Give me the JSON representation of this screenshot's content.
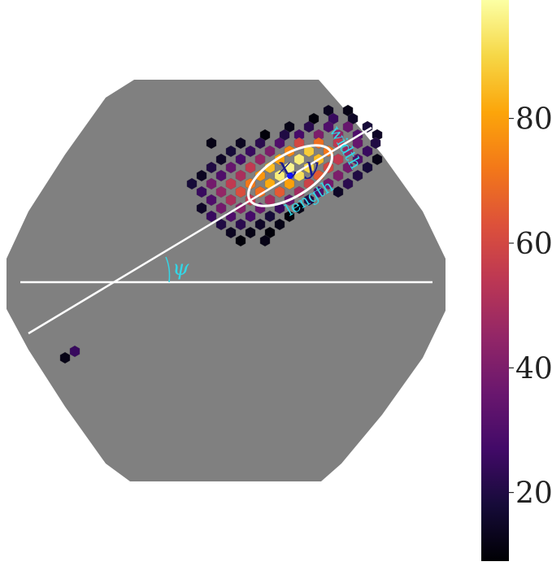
{
  "chart_data": {
    "type": "camera",
    "colormap": "inferno",
    "annotations": {
      "position": "x, y",
      "width": "width",
      "length": "length",
      "angle": "ψ"
    },
    "x": [
      428,
      404,
      386,
      410,
      434,
      356,
      380,
      404,
      428,
      452,
      326,
      350,
      368,
      392,
      416,
      440,
      464,
      260,
      296,
      320,
      344,
      368,
      392,
      416,
      440,
      462,
      284,
      308,
      332,
      356,
      380,
      404,
      428,
      452,
      272,
      296,
      320,
      344,
      368,
      392,
      416,
      440,
      464,
      260,
      284,
      308,
      332,
      356,
      380,
      404,
      428,
      452,
      248,
      272,
      296,
      320,
      344,
      368,
      392,
      416,
      440,
      236,
      260,
      284,
      308,
      332,
      356,
      380,
      404,
      428,
      248,
      272,
      296,
      320,
      344,
      368,
      392,
      416,
      260,
      284,
      308,
      332,
      356,
      380,
      248,
      272,
      296,
      320,
      344,
      368,
      260,
      284,
      308,
      332,
      356,
      272,
      296,
      320,
      344,
      284,
      308,
      332,
      296,
      326,
      80,
      92
    ],
    "y": [
      136,
      136,
      146,
      146,
      146,
      156,
      156,
      156,
      156,
      156,
      166,
      166,
      166,
      166,
      166,
      166,
      166,
      176,
      176,
      176,
      176,
      176,
      176,
      176,
      176,
      176,
      186,
      186,
      186,
      186,
      186,
      186,
      186,
      186,
      196,
      196,
      196,
      196,
      196,
      196,
      196,
      196,
      196,
      206,
      206,
      206,
      206,
      206,
      206,
      206,
      206,
      206,
      216,
      216,
      216,
      216,
      216,
      216,
      216,
      216,
      216,
      226,
      226,
      226,
      226,
      226,
      226,
      226,
      226,
      226,
      236,
      236,
      236,
      236,
      236,
      236,
      236,
      236,
      246,
      246,
      246,
      246,
      246,
      246,
      256,
      256,
      256,
      256,
      256,
      256,
      266,
      266,
      266,
      266,
      266,
      276,
      276,
      276,
      276,
      286,
      286,
      286,
      296,
      296,
      440,
      432
    ],
    "values": [
      12,
      14,
      10,
      25,
      15,
      12,
      22,
      30,
      35,
      18,
      10,
      20,
      28,
      40,
      45,
      30,
      15,
      12,
      14,
      22,
      30,
      60,
      70,
      55,
      35,
      20,
      18,
      25,
      40,
      75,
      88,
      72,
      45,
      25,
      15,
      28,
      45,
      80,
      95,
      85,
      55,
      30,
      12,
      20,
      35,
      55,
      85,
      97,
      90,
      60,
      38,
      18,
      14,
      30,
      50,
      78,
      95,
      92,
      65,
      40,
      20,
      18,
      38,
      55,
      72,
      82,
      80,
      58,
      38,
      22,
      25,
      45,
      62,
      70,
      65,
      48,
      30,
      15,
      30,
      50,
      55,
      48,
      35,
      20,
      15,
      38,
      42,
      35,
      25,
      12,
      25,
      30,
      28,
      18,
      10,
      20,
      22,
      15,
      12,
      14,
      12,
      10,
      10,
      12,
      12,
      25
    ],
    "clim": [
      9,
      99
    ],
    "cticks": [
      20,
      40,
      60,
      80
    ]
  }
}
